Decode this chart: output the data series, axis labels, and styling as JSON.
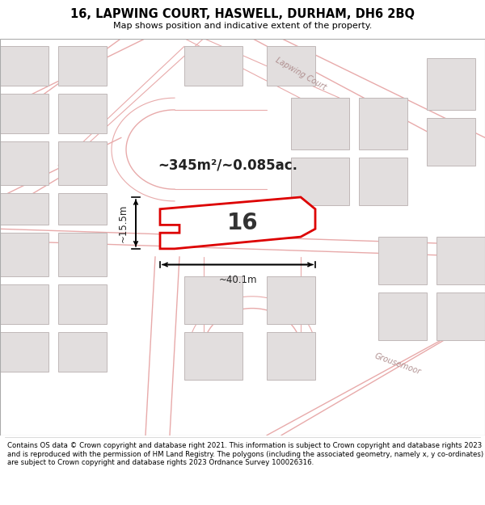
{
  "title": "16, LAPWING COURT, HASWELL, DURHAM, DH6 2BQ",
  "subtitle": "Map shows position and indicative extent of the property.",
  "footer": "Contains OS data © Crown copyright and database right 2021. This information is subject to Crown copyright and database rights 2023 and is reproduced with the permission of HM Land Registry. The polygons (including the associated geometry, namely x, y co-ordinates) are subject to Crown copyright and database rights 2023 Ordnance Survey 100026316.",
  "map_bg": "#f0eded",
  "street_label_lapwing": "Lapwing Court",
  "street_label_grousemoor": "Grousemoor",
  "area_label": "~345m²/~0.085ac.",
  "plot_number": "16",
  "dim_width": "~40.1m",
  "dim_height": "~15.5m",
  "plot_color": "#dd0000",
  "road_color": "#e8aaaa",
  "road_outline": "#c8a0a0",
  "building_fill": "#e2dede",
  "building_edge": "#c0b8b8",
  "dark_outline": "#b0a8a8"
}
